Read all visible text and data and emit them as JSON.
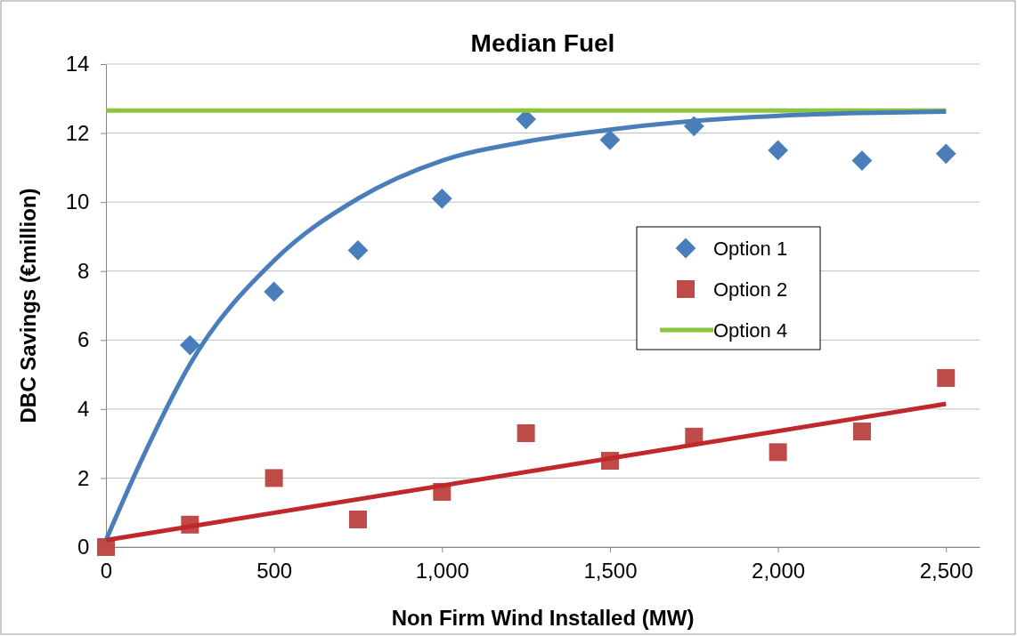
{
  "chart_data": {
    "type": "scatter",
    "title": "Median Fuel",
    "xlabel": "Non Firm Wind Installed (MW)",
    "ylabel": "DBC Savings (€million)",
    "xlim": [
      0,
      2600
    ],
    "xticks": [
      {
        "value": 0,
        "label": "0"
      },
      {
        "value": 500,
        "label": "500"
      },
      {
        "value": 1000,
        "label": "1,000"
      },
      {
        "value": 1500,
        "label": "1,500"
      },
      {
        "value": 2000,
        "label": "2,000"
      },
      {
        "value": 2500,
        "label": "2,500"
      }
    ],
    "ylim": [
      0,
      14
    ],
    "yticks": [
      0,
      2,
      4,
      6,
      8,
      10,
      12,
      14
    ],
    "grid": "y",
    "legend": "right",
    "series": [
      {
        "name": "Option 1",
        "color": "#4a7ebb",
        "marker": "diamond",
        "x": [
          250,
          500,
          750,
          1000,
          1250,
          1500,
          1750,
          2000,
          2250,
          2500
        ],
        "values": [
          5.85,
          7.4,
          8.6,
          10.1,
          12.4,
          11.8,
          12.2,
          11.5,
          11.2,
          11.4
        ]
      },
      {
        "name": "Option 2",
        "color": "#be4b48",
        "marker": "square",
        "x": [
          0,
          250,
          500,
          750,
          1000,
          1250,
          1500,
          1750,
          2000,
          2250,
          2500
        ],
        "values": [
          0,
          0.65,
          2,
          0.8,
          1.6,
          3.3,
          2.5,
          3.2,
          2.75,
          3.35,
          4.9
        ]
      },
      {
        "name": "Option 4",
        "type": "line",
        "color": "#8cc63f",
        "marker": "none",
        "x": [
          0,
          2500
        ],
        "values": [
          12.65,
          12.65
        ]
      },
      {
        "type": "line",
        "color": "#4a7ebb",
        "marker": "none",
        "x": [
          0,
          100,
          250,
          500,
          750,
          1000,
          1250,
          1500,
          1750,
          2000,
          2250,
          2500
        ],
        "values": [
          0.2,
          2.4,
          5.3,
          8.3,
          10.1,
          11.2,
          11.75,
          12.1,
          12.35,
          12.5,
          12.58,
          12.62
        ]
      },
      {
        "type": "line",
        "color": "#c0282a",
        "marker": "none",
        "x": [
          0,
          2500
        ],
        "values": [
          0.2,
          4.15
        ]
      }
    ]
  }
}
